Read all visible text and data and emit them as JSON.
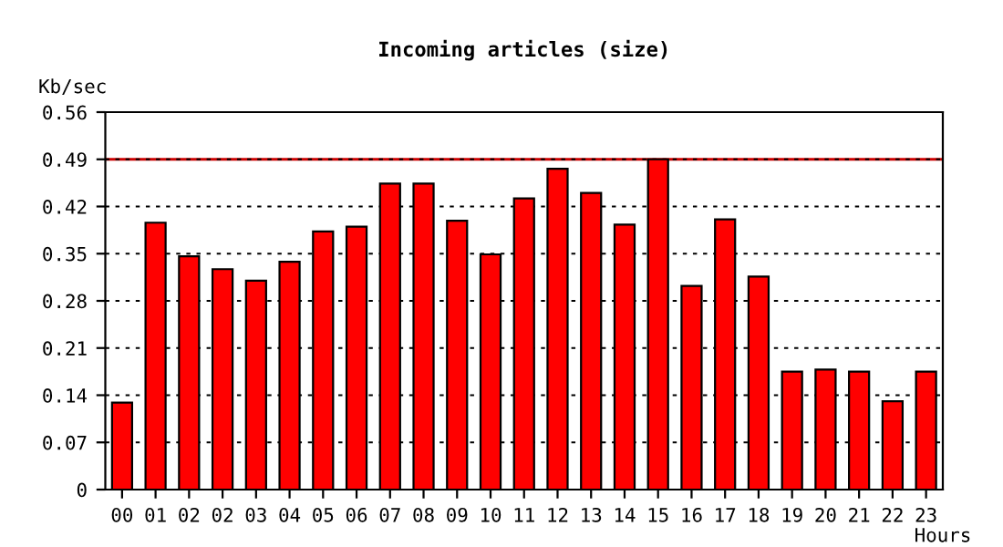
{
  "chart_data": {
    "type": "bar",
    "title": "Incoming articles (size)",
    "ylabel": "Kb/sec",
    "xlabel": "Hours",
    "categories": [
      "00",
      "01",
      "02",
      "02",
      "03",
      "04",
      "05",
      "06",
      "07",
      "08",
      "09",
      "10",
      "11",
      "12",
      "13",
      "14",
      "15",
      "16",
      "17",
      "18",
      "19",
      "20",
      "21",
      "22",
      "23"
    ],
    "values": [
      0.129,
      0.396,
      0.346,
      0.327,
      0.31,
      0.338,
      0.383,
      0.39,
      0.454,
      0.454,
      0.399,
      0.349,
      0.432,
      0.476,
      0.44,
      0.393,
      0.49,
      0.302,
      0.401,
      0.316,
      0.175,
      0.178,
      0.175,
      0.131,
      0.175
    ],
    "color": "#ff0000",
    "ylim": [
      0,
      0.56
    ],
    "yticks": [
      0,
      0.07,
      0.14,
      0.21,
      0.28,
      0.35,
      0.42,
      0.49,
      0.56
    ],
    "grid": "y",
    "ref_lines": [
      {
        "axis": "y",
        "value": 0.49,
        "color": "#cc0000"
      }
    ]
  }
}
